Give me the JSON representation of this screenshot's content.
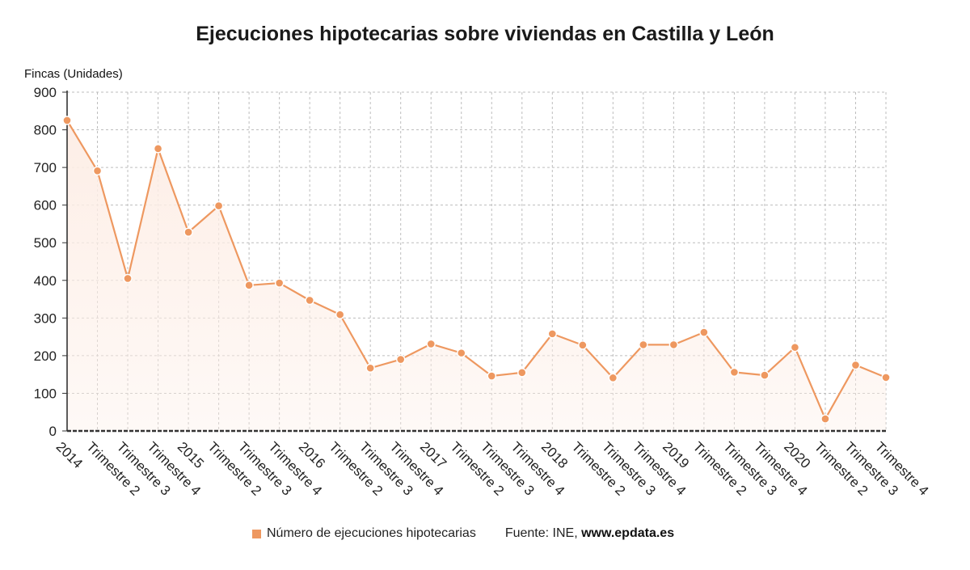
{
  "title": "Ejecuciones hipotecarias sobre viviendas en Castilla y León",
  "colors": {
    "series": "#ee9860",
    "fill": "#fdeee6",
    "grid": "#bdbdbd",
    "axis": "#333333"
  },
  "legend": {
    "label": "Número de ejecuciones hipotecarias",
    "source_prefix": "Fuente: INE,",
    "source_site": "www.epdata.es"
  },
  "chart_data": {
    "type": "area",
    "title": "Ejecuciones hipotecarias sobre viviendas en Castilla y León",
    "ylabel": "Fincas (Unidades)",
    "xlabel": "",
    "ylim": [
      0,
      900
    ],
    "yticks": [
      0,
      100,
      200,
      300,
      400,
      500,
      600,
      700,
      800,
      900
    ],
    "grid": true,
    "legend_position": "bottom",
    "categories": [
      "2014",
      "Trimestre 2",
      "Trimestre 3",
      "Trimestre 4",
      "2015",
      "Trimestre 2",
      "Trimestre 3",
      "Trimestre 4",
      "2016",
      "Trimestre 2",
      "Trimestre 3",
      "Trimestre 4",
      "2017",
      "Trimestre 2",
      "Trimestre 3",
      "Trimestre 4",
      "2018",
      "Trimestre 2",
      "Trimestre 3",
      "Trimestre 4",
      "2019",
      "Trimestre 2",
      "Trimestre 3",
      "Trimestre 4",
      "2020",
      "Trimestre 2",
      "Trimestre 3",
      "Trimestre 4"
    ],
    "series": [
      {
        "name": "Número de ejecuciones hipotecarias",
        "values": [
          825,
          691,
          405,
          750,
          528,
          598,
          387,
          393,
          347,
          309,
          167,
          190,
          231,
          207,
          146,
          155,
          258,
          228,
          141,
          229,
          229,
          262,
          156,
          148,
          222,
          32,
          175,
          142
        ]
      }
    ]
  }
}
